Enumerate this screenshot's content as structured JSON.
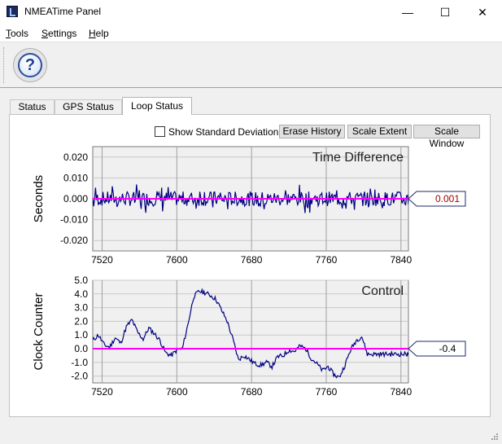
{
  "window": {
    "title": "NMEATime Panel",
    "minimize_glyph": "—",
    "maximize_glyph": "☐",
    "close_glyph": "✕"
  },
  "menu": {
    "items": [
      {
        "accel": "T",
        "rest": "ools"
      },
      {
        "accel": "S",
        "rest": "ettings"
      },
      {
        "accel": "H",
        "rest": "elp"
      }
    ]
  },
  "toolbar": {
    "help_glyph": "?"
  },
  "tabs": [
    {
      "label": "Status",
      "active": false
    },
    {
      "label": "GPS Status",
      "active": false
    },
    {
      "label": "Loop Status",
      "active": true
    }
  ],
  "controls": {
    "show_std_dev_label": "Show Standard Deviation",
    "show_std_dev_checked": false,
    "erase_history": "Erase History",
    "scale_extent": "Scale Extent",
    "scale_window": "Scale Window"
  },
  "chart_data": [
    {
      "type": "line",
      "title": "Time Difference",
      "ylabel": "Seconds",
      "xlim": [
        7510,
        7848
      ],
      "ylim": [
        -0.025,
        0.025
      ],
      "xticks": [
        7520,
        7600,
        7680,
        7760,
        7840
      ],
      "yticks": [
        0.02,
        0.01,
        0.0,
        -0.01,
        -0.02
      ],
      "ytick_labels": [
        "0.020",
        "0.010",
        "0.000",
        "-0.010",
        "-0.020"
      ],
      "grid": true,
      "series_color": "#000080",
      "mean_color": "#ff00ff",
      "current_value_label": "0.001",
      "current_value_color": "#a00000",
      "pattern": {
        "type": "noise",
        "amplitude": 0.005,
        "seed": 7,
        "samples": 340
      }
    },
    {
      "type": "line",
      "title": "Control",
      "ylabel": "Clock Counter",
      "xlim": [
        7510,
        7848
      ],
      "ylim": [
        -2.5,
        5.0
      ],
      "xticks": [
        7520,
        7600,
        7680,
        7760,
        7840
      ],
      "yticks": [
        5.0,
        4.0,
        3.0,
        2.0,
        1.0,
        0.0,
        -1.0,
        -2.0
      ],
      "ytick_labels": [
        "5.0",
        "4.0",
        "3.0",
        "2.0",
        "1.0",
        "0.0",
        "-1.0",
        "-2.0"
      ],
      "grid": true,
      "series_color": "#000080",
      "mean_color": "#ff00ff",
      "current_value_label": "-0.4",
      "current_value_color": "#000000",
      "x": [
        7510,
        7516,
        7522,
        7528,
        7534,
        7540,
        7546,
        7552,
        7558,
        7564,
        7570,
        7576,
        7582,
        7588,
        7594,
        7600,
        7606,
        7612,
        7618,
        7624,
        7630,
        7636,
        7642,
        7648,
        7654,
        7660,
        7666,
        7672,
        7678,
        7684,
        7690,
        7696,
        7702,
        7708,
        7714,
        7720,
        7726,
        7732,
        7738,
        7744,
        7750,
        7756,
        7762,
        7768,
        7774,
        7780,
        7786,
        7792,
        7798,
        7804,
        7810,
        7816,
        7822,
        7828,
        7834,
        7840,
        7846,
        7848
      ],
      "y": [
        0.6,
        1.0,
        0.3,
        0.1,
        0.8,
        0.4,
        1.6,
        2.1,
        1.2,
        0.7,
        1.5,
        1.1,
        0.6,
        -0.3,
        -0.5,
        -0.1,
        0.0,
        1.8,
        3.8,
        4.2,
        4.1,
        3.9,
        3.6,
        2.8,
        2.0,
        0.7,
        -0.8,
        -0.5,
        -0.8,
        -1.1,
        -1.2,
        -1.0,
        -1.3,
        -0.6,
        -0.5,
        -0.1,
        -0.2,
        0.2,
        0.0,
        -0.7,
        -1.1,
        -1.6,
        -1.3,
        -1.9,
        -2.1,
        -1.2,
        -0.1,
        0.6,
        0.9,
        -0.4,
        -0.4,
        -0.4,
        -0.4,
        -0.4,
        -0.4,
        -0.4,
        -0.4,
        -0.4
      ],
      "noise": 0.35
    }
  ]
}
